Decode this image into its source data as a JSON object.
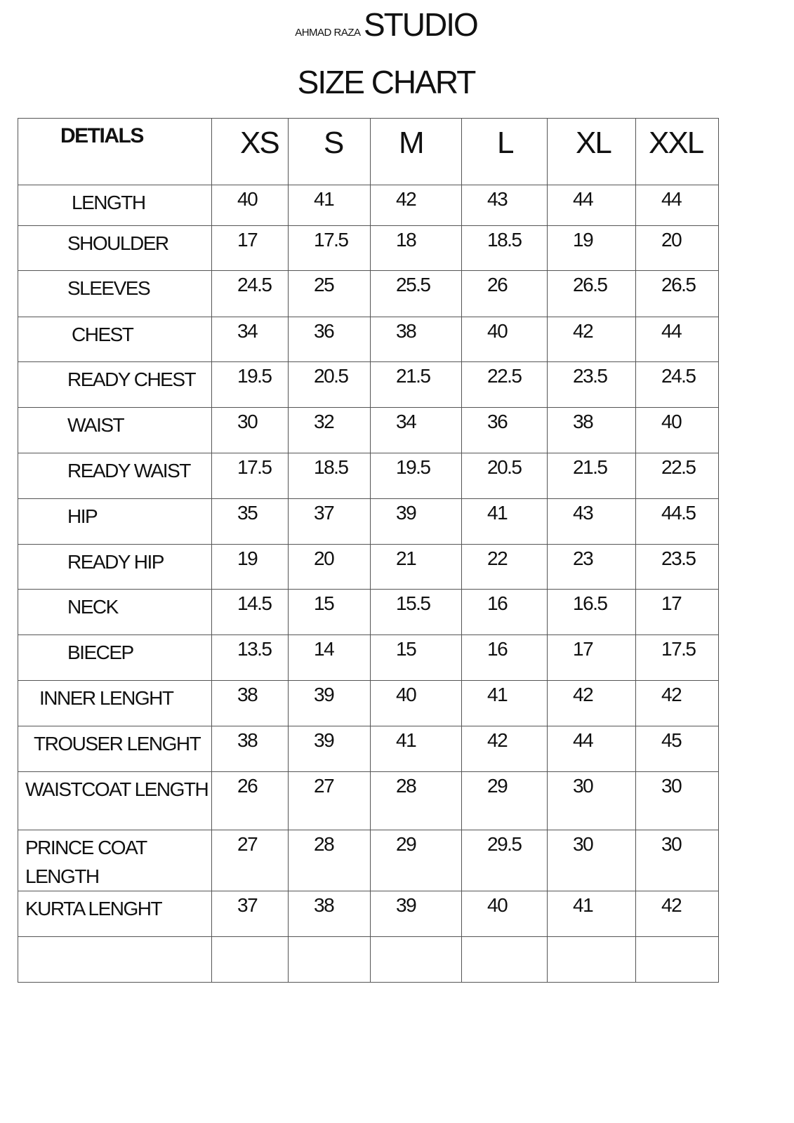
{
  "brand": {
    "prefix": "AHMAD RAZA",
    "name": "STUDIO"
  },
  "title": "SIZE CHART",
  "table": {
    "header_label": "DETIALS",
    "sizes": [
      "XS",
      "S",
      "M",
      "L",
      "XL",
      "XXL"
    ],
    "rows": [
      {
        "label": "LENGTH",
        "values": [
          "40",
          "41",
          "42",
          "43",
          "44",
          "44"
        ]
      },
      {
        "label": "SHOULDER",
        "values": [
          "17",
          "17.5",
          "18",
          "18.5",
          "19",
          "20"
        ]
      },
      {
        "label": "SLEEVES",
        "values": [
          "24.5",
          "25",
          "25.5",
          "26",
          "26.5",
          "26.5"
        ]
      },
      {
        "label": "CHEST",
        "values": [
          "34",
          "36",
          "38",
          "40",
          "42",
          "44"
        ]
      },
      {
        "label": "READY CHEST",
        "values": [
          "19.5",
          "20.5",
          "21.5",
          "22.5",
          "23.5",
          "24.5"
        ]
      },
      {
        "label": "WAIST",
        "values": [
          "30",
          "32",
          "34",
          "36",
          "38",
          "40"
        ]
      },
      {
        "label": "READY WAIST",
        "values": [
          "17.5",
          "18.5",
          "19.5",
          "20.5",
          "21.5",
          "22.5"
        ]
      },
      {
        "label": "HIP",
        "values": [
          "35",
          "37",
          "39",
          "41",
          "43",
          "44.5"
        ]
      },
      {
        "label": "READY HIP",
        "values": [
          "19",
          "20",
          "21",
          "22",
          "23",
          "23.5"
        ]
      },
      {
        "label": "NECK",
        "values": [
          "14.5",
          "15",
          "15.5",
          "16",
          "16.5",
          "17"
        ]
      },
      {
        "label": "BIECEP",
        "values": [
          "13.5",
          "14",
          "15",
          "16",
          "17",
          "17.5"
        ]
      },
      {
        "label": "INNER LENGHT",
        "values": [
          "38",
          "39",
          "40",
          "41",
          "42",
          "42"
        ]
      },
      {
        "label": "TROUSER LENGHT",
        "values": [
          "38",
          "39",
          "41",
          "42",
          "44",
          "45"
        ]
      },
      {
        "label": "WAISTCOAT LENGTH",
        "values": [
          "26",
          "27",
          "28",
          "29",
          "30",
          "30"
        ]
      },
      {
        "label": "PRINCE COAT LENGTH",
        "values": [
          "27",
          "28",
          "29",
          "29.5",
          "30",
          "30"
        ]
      },
      {
        "label": "KURTA LENGHT",
        "values": [
          "37",
          "38",
          "39",
          "40",
          "41",
          "42"
        ]
      },
      {
        "label": "",
        "values": [
          "",
          "",
          "",
          "",
          "",
          ""
        ]
      }
    ]
  }
}
